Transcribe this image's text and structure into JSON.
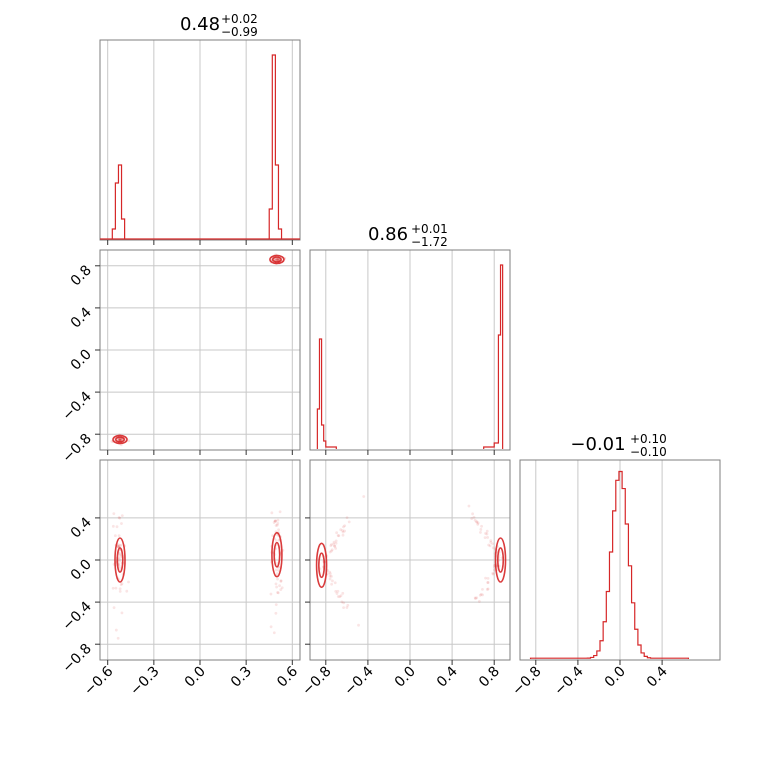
{
  "chart_data": [
    {
      "type": "histogram",
      "panel": "diag-0",
      "title": {
        "value": "0.48",
        "plus": "+0.02",
        "minus": "−0.99"
      },
      "xlim": [
        -0.65,
        0.65
      ],
      "x_ticks": [
        -0.6,
        -0.3,
        0.0,
        0.3,
        0.6
      ],
      "bins": [
        {
          "x0": -0.57,
          "x1": -0.55,
          "h": 0.05
        },
        {
          "x0": -0.55,
          "x1": -0.53,
          "h": 0.28
        },
        {
          "x0": -0.53,
          "x1": -0.51,
          "h": 0.37
        },
        {
          "x0": -0.51,
          "x1": -0.49,
          "h": 0.1
        },
        {
          "x0": 0.45,
          "x1": 0.47,
          "h": 0.15
        },
        {
          "x0": 0.47,
          "x1": 0.49,
          "h": 0.92
        },
        {
          "x0": 0.49,
          "x1": 0.51,
          "h": 0.37
        },
        {
          "x0": 0.51,
          "x1": 0.53,
          "h": 0.05
        }
      ]
    },
    {
      "type": "scatter",
      "panel": "row1-col0",
      "xlim": [
        -0.65,
        0.65
      ],
      "ylim": [
        -0.95,
        0.95
      ],
      "y_ticks": [
        "-0.8",
        "-0.4",
        "0.0",
        "0.4",
        "0.8"
      ],
      "clusters": [
        {
          "x": -0.52,
          "y": -0.85,
          "sx": 0.02,
          "sy": 0.02
        },
        {
          "x": 0.5,
          "y": 0.86,
          "sx": 0.02,
          "sy": 0.02
        }
      ]
    },
    {
      "type": "histogram",
      "panel": "diag-1",
      "title": {
        "value": "0.86",
        "plus": "+0.01",
        "minus": "−1.72"
      },
      "xlim": [
        -0.95,
        0.95
      ],
      "bins": [
        {
          "x0": -0.88,
          "x1": -0.86,
          "h": 0.2
        },
        {
          "x0": -0.86,
          "x1": -0.84,
          "h": 0.55
        },
        {
          "x0": -0.84,
          "x1": -0.82,
          "h": 0.12
        },
        {
          "x0": -0.82,
          "x1": -0.8,
          "h": 0.04
        },
        {
          "x0": -0.8,
          "x1": -0.7,
          "h": 0.01
        },
        {
          "x0": 0.7,
          "x1": 0.8,
          "h": 0.01
        },
        {
          "x0": 0.8,
          "x1": 0.84,
          "h": 0.03
        },
        {
          "x0": 0.84,
          "x1": 0.86,
          "h": 0.57
        },
        {
          "x0": 0.86,
          "x1": 0.88,
          "h": 0.92
        }
      ]
    },
    {
      "type": "scatter",
      "panel": "row2-col0",
      "xlim": [
        -0.65,
        0.65
      ],
      "ylim": [
        -0.95,
        0.95
      ],
      "x_ticks": [
        "-0.6",
        "-0.3",
        "0.0",
        "0.3",
        "0.6"
      ],
      "y_ticks": [
        "-0.8",
        "-0.4",
        "0.0",
        "0.4"
      ],
      "clusters": [
        {
          "x": -0.52,
          "y": 0.0,
          "sx": 0.02,
          "sy": 0.12
        },
        {
          "x": 0.5,
          "y": 0.05,
          "sx": 0.02,
          "sy": 0.12
        }
      ]
    },
    {
      "type": "scatter",
      "panel": "row2-col1",
      "xlim": [
        -0.95,
        0.95
      ],
      "ylim": [
        -0.95,
        0.95
      ],
      "x_ticks": [
        "-0.8",
        "-0.4",
        "0.0",
        "0.4",
        "0.8"
      ],
      "clusters": [
        {
          "x": -0.84,
          "y": -0.05,
          "sx": 0.02,
          "sy": 0.12
        },
        {
          "x": 0.86,
          "y": 0.0,
          "sx": 0.02,
          "sy": 0.12
        }
      ]
    },
    {
      "type": "histogram",
      "panel": "diag-2",
      "title": {
        "value": "−0.01",
        "plus": "+0.10",
        "minus": "−0.10"
      },
      "xlim": [
        -0.95,
        0.95
      ],
      "x_ticks": [
        "-0.8",
        "-0.4",
        "0.0",
        "0.4"
      ],
      "gaussian": {
        "mean": 0.0,
        "sd": 0.08,
        "range": [
          -0.85,
          0.65
        ]
      }
    }
  ]
}
